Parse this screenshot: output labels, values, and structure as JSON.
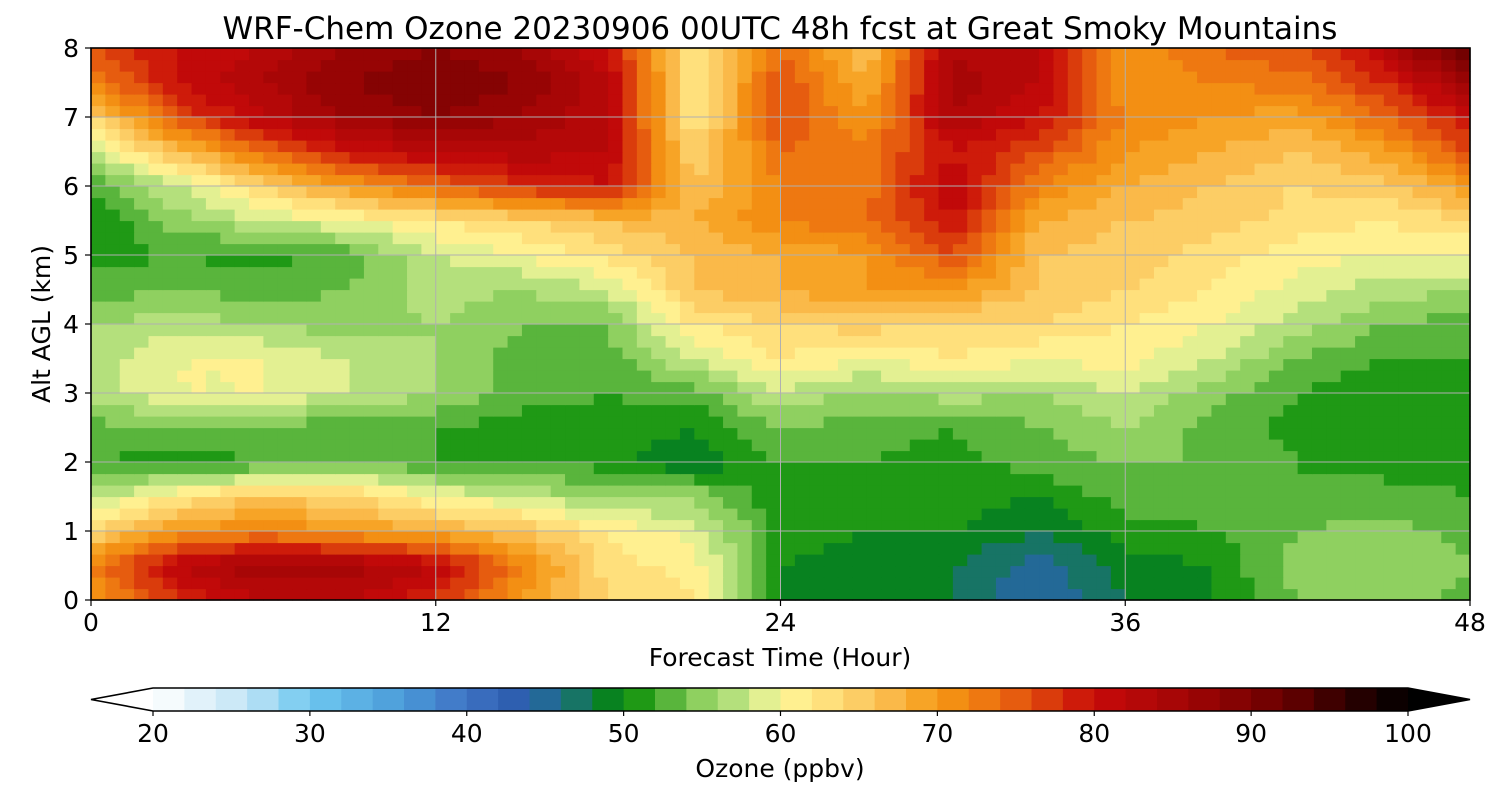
{
  "chart_data": {
    "type": "heatmap",
    "title": "WRF-Chem Ozone  20230906 00UTC 48h fcst at Great Smoky Mountains",
    "xlabel": "Forecast Time (Hour)",
    "ylabel": "Alt AGL (km)",
    "xlim": [
      0,
      48
    ],
    "ylim": [
      0,
      8
    ],
    "xticks": [
      0,
      12,
      24,
      36,
      48
    ],
    "yticks": [
      0,
      1,
      2,
      3,
      4,
      5,
      6,
      7,
      8
    ],
    "grid": true,
    "x": [
      0,
      3,
      6,
      9,
      12,
      15,
      18,
      21,
      24,
      27,
      30,
      33,
      36,
      39,
      42,
      45,
      48
    ],
    "y": [
      0,
      0.5,
      1,
      1.5,
      2,
      2.5,
      3,
      3.5,
      4,
      4.5,
      5,
      5.5,
      6,
      6.5,
      7,
      7.5,
      8
    ],
    "z": [
      [
        70,
        78,
        82,
        82,
        78,
        70,
        64,
        62,
        50,
        50,
        48,
        44,
        48,
        50,
        54,
        55,
        53
      ],
      [
        72,
        82,
        86,
        85,
        82,
        72,
        63,
        61,
        50,
        49,
        48,
        45,
        49,
        50,
        55,
        56,
        54
      ],
      [
        64,
        70,
        72,
        70,
        68,
        66,
        62,
        59,
        51,
        50,
        50,
        48,
        51,
        52,
        54,
        55,
        53
      ],
      [
        57,
        62,
        66,
        64,
        60,
        58,
        55,
        56,
        50,
        52,
        51,
        50,
        53,
        53,
        52,
        53,
        52
      ],
      [
        52,
        51,
        52,
        54,
        52,
        52,
        51,
        48,
        52,
        52,
        51,
        53,
        54,
        54,
        52,
        51,
        51
      ],
      [
        53,
        54,
        53,
        53,
        52,
        51,
        51,
        50,
        54,
        53,
        52,
        54,
        56,
        53,
        51,
        50,
        51
      ],
      [
        57,
        60,
        60,
        58,
        56,
        53,
        52,
        53,
        58,
        55,
        57,
        56,
        58,
        55,
        52,
        50,
        51
      ],
      [
        57,
        60,
        60,
        58,
        56,
        53,
        53,
        58,
        62,
        60,
        62,
        60,
        61,
        58,
        54,
        52,
        52
      ],
      [
        56,
        57,
        56,
        55,
        56,
        54,
        54,
        62,
        64,
        65,
        63,
        64,
        62,
        60,
        57,
        54,
        53
      ],
      [
        53,
        54,
        53,
        54,
        57,
        56,
        58,
        66,
        68,
        70,
        70,
        66,
        64,
        62,
        59,
        57,
        56
      ],
      [
        51,
        52,
        51,
        53,
        58,
        60,
        63,
        66,
        68,
        70,
        76,
        66,
        65,
        63,
        61,
        60,
        60
      ],
      [
        50,
        55,
        58,
        60,
        62,
        64,
        66,
        68,
        72,
        74,
        80,
        68,
        66,
        65,
        63,
        62,
        64
      ],
      [
        52,
        58,
        64,
        70,
        74,
        78,
        80,
        66,
        72,
        73,
        82,
        72,
        68,
        66,
        64,
        65,
        70
      ],
      [
        58,
        66,
        74,
        80,
        82,
        83,
        82,
        64,
        74,
        73,
        80,
        76,
        70,
        68,
        66,
        69,
        76
      ],
      [
        64,
        76,
        82,
        86,
        88,
        86,
        82,
        62,
        76,
        70,
        84,
        80,
        72,
        70,
        69,
        74,
        80
      ],
      [
        72,
        80,
        84,
        88,
        90,
        88,
        82,
        62,
        76,
        68,
        85,
        82,
        70,
        72,
        73,
        78,
        86
      ],
      [
        76,
        80,
        82,
        86,
        88,
        86,
        80,
        62,
        74,
        66,
        84,
        82,
        70,
        74,
        76,
        82,
        94
      ]
    ],
    "colorbar": {
      "label": "Ozone  (ppbv)",
      "min": 20,
      "max": 100,
      "extend": "both",
      "ticks": [
        20,
        30,
        40,
        50,
        60,
        70,
        80,
        90,
        100
      ],
      "stops": [
        {
          "v": 20,
          "color": "#ffffff"
        },
        {
          "v": 26,
          "color": "#c2e4f5"
        },
        {
          "v": 30,
          "color": "#6ec8f0"
        },
        {
          "v": 36,
          "color": "#4a9ad8"
        },
        {
          "v": 40,
          "color": "#3f72c4"
        },
        {
          "v": 43,
          "color": "#2e5fb0"
        },
        {
          "v": 46,
          "color": "#1e6e8a"
        },
        {
          "v": 48,
          "color": "#0f7a40"
        },
        {
          "v": 50,
          "color": "#008a00"
        },
        {
          "v": 52,
          "color": "#3ea82a"
        },
        {
          "v": 55,
          "color": "#8fd060"
        },
        {
          "v": 58,
          "color": "#c7e88a"
        },
        {
          "v": 60,
          "color": "#fff89a"
        },
        {
          "v": 63,
          "color": "#ffe07c"
        },
        {
          "v": 66,
          "color": "#fbc35a"
        },
        {
          "v": 70,
          "color": "#f59a14"
        },
        {
          "v": 74,
          "color": "#ec6c10"
        },
        {
          "v": 78,
          "color": "#d42c0a"
        },
        {
          "v": 80,
          "color": "#c80a0a"
        },
        {
          "v": 86,
          "color": "#a00505"
        },
        {
          "v": 92,
          "color": "#6a0000"
        },
        {
          "v": 96,
          "color": "#300000"
        },
        {
          "v": 100,
          "color": "#000000"
        }
      ]
    }
  }
}
